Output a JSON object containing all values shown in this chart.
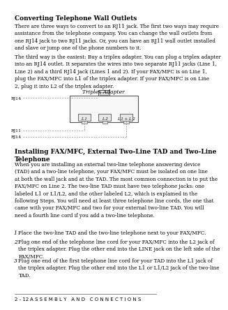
{
  "page_num": "2 - 12",
  "footer_text": "A S S E M B L Y   A N D   C O N N E C T I O N S",
  "title1": "Converting Telephone Wall Outlets",
  "para1": "There are three ways to convert to an RJ11 jack. The first two ways may require\nassistance from the telephone company. You can change the wall outlets from\none RJ14 jack to two RJ11 jacks. Or, you can have an RJ11 wall outlet installed\nand slave or jump one of the phone numbers to it.",
  "para2": "The third way is the easiest: Buy a triplex adapter. You can plug a triplex adapter\ninto an RJ14 outlet. It separates the wires into two separate RJ11 jacks (Line 1,\nLine 2) and a third RJ14 jack (Lines 1 and 2). If your FAX/MFC is on Line 1,\nplug the FAX/MFC into L1 of the triplex adapter. If your FAX/MFC is on Line\n2, plug it into L2 of the triplex adapter.",
  "diagram_label": "Triplex Adapter",
  "rj14_label": "RJ14",
  "rj11_label": "RJ11",
  "rj14b_label": "RJ14",
  "port_labels": [
    "L 1",
    "L 2",
    "L 1 + L 2"
  ],
  "title2": "Installing FAX/MFC, External Two-Line TAD and Two-Line\nTelephone",
  "para3_plain": "When you are installing an external two-line telephone answering device\n(TAD) and a two-line telephone, your FAX/MFC must be isolated on one line\nat both the wall jack and at the TAD. The most common connection is to put the\nFAX/MFC on Line 2. The two-line TAD must have two telephone jacks: one\nlabeled L1 or L1/L2, and the other labeled L2, which is explained in the\nfollowing Steps. You will need at least three telephone line cords, the one that\ncame with your FAX/MFC and two for your external two-line TAD. You will\nneed a fourth line cord if you add a two-line telephone.",
  "step1": "Place the two-line TAD and the two-line telephone next to your FAX/MFC.",
  "step2": "Plug one end of the telephone line cord for your FAX/MFC into the L2 jack of\nthe triplex adapter. Plug the other end into the LINE jack on the left side of the\nFAX/MFC.",
  "step3": "Plug one end of the first telephone line cord for your TAD into the L1 jack of\nthe triplex adapter. Plug the other end into the L1 or L1/L2 jack of the two-line\nTAD.",
  "bg_color": "#ffffff",
  "text_color": "#000000",
  "diagram_color": "#888888"
}
